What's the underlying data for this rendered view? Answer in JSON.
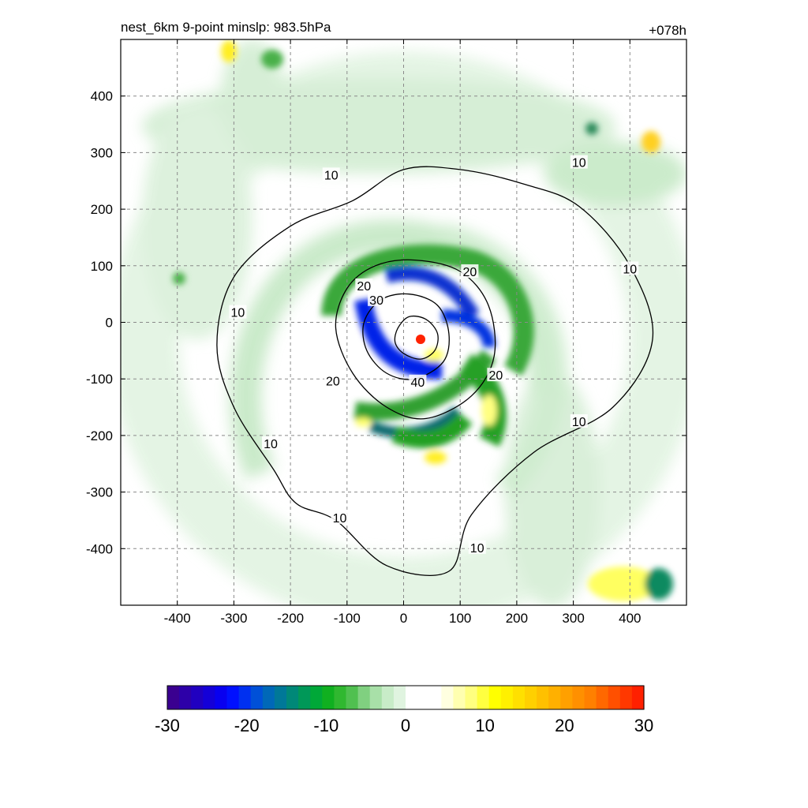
{
  "chart_data": {
    "type": "heatmap",
    "title": "nest_6km  9-point minslp: 983.5hPa",
    "subtitle_right": "+078h",
    "xlabel": "",
    "ylabel": "",
    "xlim": [
      -500,
      500
    ],
    "ylim": [
      -500,
      500
    ],
    "x_ticks": [
      -400,
      -300,
      -200,
      -100,
      0,
      100,
      200,
      300,
      400
    ],
    "y_ticks": [
      400,
      300,
      200,
      100,
      0,
      -100,
      -200,
      -300,
      -400
    ],
    "grid": true,
    "center_marker": {
      "x": 30,
      "y": -30,
      "color": "#ff2200"
    },
    "contours": [
      {
        "level": "10",
        "points": [
          [
            -230,
            -260
          ],
          [
            -300,
            -150
          ],
          [
            -330,
            -40
          ],
          [
            -300,
            80
          ],
          [
            -200,
            170
          ],
          [
            -90,
            215
          ],
          [
            0,
            270
          ],
          [
            100,
            270
          ],
          [
            210,
            245
          ],
          [
            310,
            205
          ],
          [
            400,
            100
          ],
          [
            440,
            -30
          ],
          [
            370,
            -150
          ],
          [
            230,
            -230
          ],
          [
            120,
            -340
          ],
          [
            80,
            -440
          ],
          [
            -30,
            -430
          ],
          [
            -120,
            -350
          ],
          [
            -190,
            -320
          ],
          [
            -230,
            -260
          ]
        ],
        "labels": [
          {
            "x": 400,
            "y": 95,
            "text": "10"
          },
          {
            "x": -293,
            "y": 18,
            "text": "10"
          },
          {
            "x": 310,
            "y": 283,
            "text": "10"
          },
          {
            "x": -128,
            "y": 261,
            "text": "10"
          },
          {
            "x": 310,
            "y": -175,
            "text": "10"
          },
          {
            "x": -235,
            "y": -214,
            "text": "10"
          },
          {
            "x": -113,
            "y": -345,
            "text": "10"
          },
          {
            "x": 130,
            "y": -398,
            "text": "10"
          }
        ]
      },
      {
        "level": "20",
        "points": [
          [
            -120,
            -10
          ],
          [
            -100,
            60
          ],
          [
            -50,
            100
          ],
          [
            20,
            110
          ],
          [
            100,
            90
          ],
          [
            150,
            30
          ],
          [
            160,
            -60
          ],
          [
            120,
            -130
          ],
          [
            40,
            -170
          ],
          [
            -30,
            -150
          ],
          [
            -90,
            -90
          ],
          [
            -120,
            -10
          ]
        ],
        "labels": [
          {
            "x": -70,
            "y": 65,
            "text": "20"
          },
          {
            "x": 117,
            "y": 90,
            "text": "20"
          },
          {
            "x": 163,
            "y": -93,
            "text": "20"
          },
          {
            "x": -125,
            "y": -103,
            "text": "20"
          }
        ]
      },
      {
        "level": "30",
        "points": [
          [
            -70,
            0
          ],
          [
            -40,
            40
          ],
          [
            10,
            50
          ],
          [
            60,
            30
          ],
          [
            80,
            -20
          ],
          [
            70,
            -70
          ],
          [
            20,
            -100
          ],
          [
            -30,
            -90
          ],
          [
            -65,
            -50
          ],
          [
            -70,
            0
          ]
        ],
        "labels": [
          {
            "x": -48,
            "y": 40,
            "text": "30"
          }
        ]
      },
      {
        "level": "40",
        "points": [
          [
            -10,
            -10
          ],
          [
            10,
            10
          ],
          [
            40,
            5
          ],
          [
            60,
            -20
          ],
          [
            55,
            -50
          ],
          [
            30,
            -65
          ],
          [
            0,
            -55
          ],
          [
            -15,
            -35
          ],
          [
            -10,
            -10
          ]
        ],
        "labels": [
          {
            "x": 25,
            "y": -105,
            "text": "40"
          }
        ]
      }
    ],
    "colorbar": {
      "min": -30,
      "max": 30,
      "tick_labels": [
        "-30",
        "-20",
        "-10",
        "0",
        "10",
        "20",
        "30"
      ],
      "colors": [
        "#3a0090",
        "#2d00a8",
        "#2000c0",
        "#1400d8",
        "#0800f0",
        "#0010ff",
        "#0030f0",
        "#0050d8",
        "#0068b8",
        "#007898",
        "#008878",
        "#009858",
        "#00a838",
        "#10b020",
        "#30b830",
        "#50c050",
        "#80d080",
        "#a8e0a8",
        "#c8ecc8",
        "#e0f4e0",
        "#ffffff",
        "#ffffff",
        "#ffffff",
        "#ffffe0",
        "#ffffb0",
        "#ffff80",
        "#ffff40",
        "#ffff00",
        "#fff000",
        "#ffe000",
        "#ffd000",
        "#ffc000",
        "#ffb000",
        "#ffa000",
        "#ff9000",
        "#ff8000",
        "#ff6800",
        "#ff5000",
        "#ff3800",
        "#ff2000"
      ]
    }
  }
}
